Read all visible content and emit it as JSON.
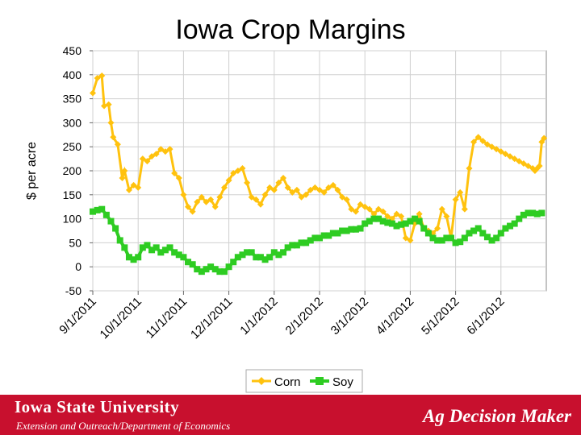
{
  "slide": {
    "title": "Iowa Crop Margins",
    "footer_university": "Iowa State University",
    "footer_department": "Extension and Outreach/Department of Economics",
    "footer_brand": "Ag Decision Maker"
  },
  "chart_data": {
    "type": "line",
    "ylabel": "$ per acre",
    "ylim": [
      -50,
      450
    ],
    "yticks": [
      -50,
      0,
      50,
      100,
      150,
      200,
      250,
      300,
      350,
      400,
      450
    ],
    "xlim": [
      0,
      10
    ],
    "xticks": [
      {
        "label": "9/1/2011",
        "x": 0
      },
      {
        "label": "10/1/2011",
        "x": 1
      },
      {
        "label": "11/1/2011",
        "x": 2
      },
      {
        "label": "12/1/2011",
        "x": 3
      },
      {
        "label": "1/1/2012",
        "x": 4
      },
      {
        "label": "2/1/2012",
        "x": 5
      },
      {
        "label": "3/1/2012",
        "x": 6
      },
      {
        "label": "4/1/2012",
        "x": 7
      },
      {
        "label": "5/1/2012",
        "x": 8
      },
      {
        "label": "6/1/2012",
        "x": 9
      }
    ],
    "grid": true,
    "legend_position": "bottom",
    "series": [
      {
        "name": "Corn",
        "color": "#ffc20e",
        "marker": "diamond",
        "x": [
          0,
          0.1,
          0.2,
          0.25,
          0.35,
          0.4,
          0.45,
          0.55,
          0.65,
          0.7,
          0.8,
          0.9,
          1.0,
          1.1,
          1.2,
          1.3,
          1.4,
          1.5,
          1.6,
          1.7,
          1.8,
          1.9,
          2.0,
          2.1,
          2.2,
          2.3,
          2.4,
          2.5,
          2.6,
          2.7,
          2.8,
          2.9,
          3.0,
          3.1,
          3.2,
          3.3,
          3.4,
          3.5,
          3.6,
          3.7,
          3.8,
          3.9,
          4.0,
          4.1,
          4.2,
          4.3,
          4.4,
          4.5,
          4.6,
          4.7,
          4.8,
          4.9,
          5.0,
          5.1,
          5.2,
          5.3,
          5.4,
          5.5,
          5.6,
          5.7,
          5.8,
          5.9,
          6.0,
          6.1,
          6.2,
          6.3,
          6.4,
          6.5,
          6.6,
          6.7,
          6.8,
          6.9,
          7.0,
          7.1,
          7.2,
          7.3,
          7.4,
          7.5,
          7.6,
          7.7,
          7.8,
          7.9,
          8.0,
          8.1,
          8.2,
          8.3,
          8.4,
          8.5,
          8.6,
          8.7,
          8.8,
          8.9,
          9.0,
          9.1,
          9.2,
          9.3,
          9.4,
          9.5,
          9.6,
          9.7,
          9.75,
          9.8,
          9.85,
          9.9,
          9.95
        ],
        "values": [
          362,
          393,
          398,
          335,
          338,
          300,
          270,
          255,
          185,
          200,
          160,
          170,
          165,
          225,
          220,
          230,
          235,
          245,
          240,
          245,
          195,
          185,
          150,
          125,
          115,
          135,
          145,
          135,
          140,
          125,
          145,
          165,
          180,
          195,
          200,
          205,
          175,
          145,
          140,
          130,
          150,
          165,
          160,
          175,
          185,
          165,
          155,
          160,
          145,
          150,
          160,
          165,
          160,
          155,
          165,
          170,
          160,
          145,
          140,
          120,
          115,
          130,
          125,
          120,
          110,
          120,
          115,
          105,
          100,
          110,
          105,
          60,
          55,
          90,
          110,
          80,
          75,
          70,
          80,
          120,
          105,
          60,
          140,
          155,
          120,
          205,
          260,
          270,
          262,
          255,
          250,
          245,
          240,
          235,
          230,
          225,
          220,
          215,
          210,
          205,
          200,
          205,
          210,
          260,
          268
        ],
        "points_note": ""
      },
      {
        "name": "Soy",
        "color": "#2ecc22",
        "marker": "square",
        "x": [
          0,
          0.1,
          0.2,
          0.3,
          0.4,
          0.5,
          0.6,
          0.7,
          0.8,
          0.9,
          1.0,
          1.1,
          1.2,
          1.3,
          1.4,
          1.5,
          1.6,
          1.7,
          1.8,
          1.9,
          2.0,
          2.1,
          2.2,
          2.3,
          2.4,
          2.5,
          2.6,
          2.7,
          2.8,
          2.9,
          3.0,
          3.1,
          3.2,
          3.3,
          3.4,
          3.5,
          3.6,
          3.7,
          3.8,
          3.9,
          4.0,
          4.1,
          4.2,
          4.3,
          4.4,
          4.5,
          4.6,
          4.7,
          4.8,
          4.9,
          5.0,
          5.1,
          5.2,
          5.3,
          5.4,
          5.5,
          5.6,
          5.7,
          5.8,
          5.9,
          6.0,
          6.1,
          6.2,
          6.3,
          6.4,
          6.5,
          6.6,
          6.7,
          6.8,
          6.9,
          7.0,
          7.1,
          7.2,
          7.3,
          7.4,
          7.5,
          7.6,
          7.7,
          7.8,
          7.9,
          8.0,
          8.1,
          8.2,
          8.3,
          8.4,
          8.5,
          8.6,
          8.7,
          8.8,
          8.9,
          9.0,
          9.1,
          9.2,
          9.3,
          9.4,
          9.5,
          9.6,
          9.7,
          9.8,
          9.9
        ],
        "values": [
          115,
          118,
          120,
          108,
          95,
          80,
          55,
          40,
          20,
          15,
          20,
          40,
          45,
          35,
          40,
          30,
          35,
          40,
          30,
          25,
          20,
          10,
          5,
          -5,
          -10,
          -5,
          0,
          -5,
          -10,
          -10,
          0,
          10,
          20,
          25,
          30,
          30,
          20,
          20,
          15,
          20,
          30,
          25,
          30,
          40,
          45,
          45,
          50,
          50,
          55,
          60,
          60,
          65,
          65,
          70,
          70,
          75,
          75,
          78,
          78,
          80,
          90,
          95,
          100,
          100,
          95,
          92,
          90,
          85,
          88,
          90,
          95,
          100,
          95,
          80,
          70,
          60,
          55,
          55,
          60,
          60,
          50,
          52,
          60,
          70,
          75,
          80,
          70,
          62,
          55,
          60,
          70,
          80,
          85,
          90,
          100,
          108,
          112,
          112,
          110,
          112
        ],
        "points_note": ""
      }
    ]
  }
}
